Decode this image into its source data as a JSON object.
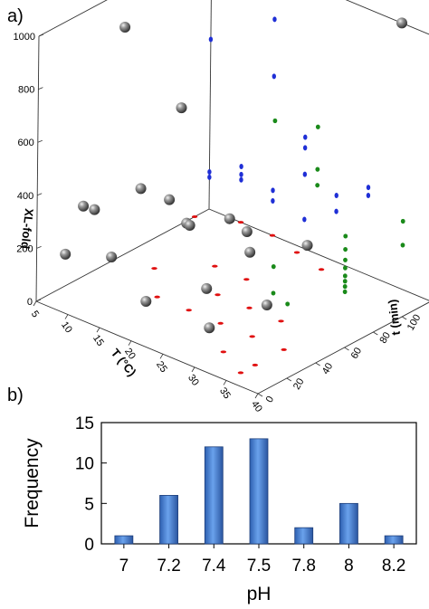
{
  "panels": {
    "a_label": "a)",
    "b_label": "b)"
  },
  "chart_data": [
    {
      "type": "scatter",
      "projection": "3d",
      "panel": "a)",
      "xlabel": "T (°C)",
      "ylabel": "t (min)",
      "zlabel": "XL-fold",
      "xlim": [
        5,
        40
      ],
      "ylim": [
        0,
        120
      ],
      "zlim": [
        0,
        1000
      ],
      "x_ticks": [
        "5",
        "10",
        "15",
        "20",
        "25",
        "30",
        "35",
        "40"
      ],
      "y_ticks": [
        "0",
        "20",
        "40",
        "60",
        "80",
        "100",
        "120"
      ],
      "z_ticks": [
        "0",
        "200",
        "400",
        "600",
        "800",
        "1000"
      ],
      "colors": {
        "points": "#5a5a5a",
        "proj_xz": "#1f2fd6",
        "proj_yz": "#1a8a1a",
        "proj_xy": "#e01010"
      },
      "points": [
        {
          "T": 5,
          "t": 60,
          "fold": 860
        },
        {
          "T": 5,
          "t": 100,
          "fold": 440
        },
        {
          "T": 5,
          "t": 20,
          "fold": 120
        },
        {
          "T": 5,
          "t": 40,
          "fold": 230
        },
        {
          "T": 10,
          "t": 10,
          "fold": 380
        },
        {
          "T": 10,
          "t": 30,
          "fold": 130
        },
        {
          "T": 10,
          "t": 50,
          "fold": 330
        },
        {
          "T": 10,
          "t": 70,
          "fold": 230
        },
        {
          "T": 15,
          "t": 60,
          "fold": 220
        },
        {
          "T": 15,
          "t": 90,
          "fold": 150
        },
        {
          "T": 20,
          "t": 10,
          "fold": 120
        },
        {
          "T": 20,
          "t": 40,
          "fold": 320
        },
        {
          "T": 20,
          "t": 80,
          "fold": 180
        },
        {
          "T": 25,
          "t": 30,
          "fold": 160
        },
        {
          "T": 25,
          "t": 60,
          "fold": 210
        },
        {
          "T": 25,
          "t": 100,
          "fold": 120
        },
        {
          "T": 30,
          "t": 50,
          "fold": 90
        },
        {
          "T": 30,
          "t": 10,
          "fold": 120
        },
        {
          "T": 35,
          "t": 120,
          "fold": 1000
        }
      ],
      "proj_xz": [
        {
          "T": 5,
          "fold": 990
        },
        {
          "T": 5,
          "fold": 640
        },
        {
          "T": 15,
          "fold": 815
        },
        {
          "T": 15,
          "fold": 600
        },
        {
          "T": 20,
          "fold": 420
        },
        {
          "T": 20,
          "fold": 380
        },
        {
          "T": 20,
          "fold": 280
        },
        {
          "T": 25,
          "fold": 250
        },
        {
          "T": 25,
          "fold": 190
        },
        {
          "T": 10,
          "fold": 210
        },
        {
          "T": 10,
          "fold": 180
        },
        {
          "T": 10,
          "fold": 160
        },
        {
          "T": 5,
          "fold": 140
        },
        {
          "T": 5,
          "fold": 120
        },
        {
          "T": 15,
          "fold": 170
        },
        {
          "T": 15,
          "fold": 130
        },
        {
          "T": 20,
          "fold": 110
        },
        {
          "T": 30,
          "fold": 330
        },
        {
          "T": 30,
          "fold": 300
        }
      ],
      "proj_yz": [
        {
          "t": 10,
          "fold": 1000
        },
        {
          "t": 40,
          "fold": 890
        },
        {
          "t": 40,
          "fold": 730
        },
        {
          "t": 40,
          "fold": 670
        },
        {
          "t": 10,
          "fold": 450
        },
        {
          "t": 10,
          "fold": 350
        },
        {
          "t": 20,
          "fold": 280
        },
        {
          "t": 60,
          "fold": 420
        },
        {
          "t": 60,
          "fold": 370
        },
        {
          "t": 60,
          "fold": 330
        },
        {
          "t": 60,
          "fold": 300
        },
        {
          "t": 60,
          "fold": 270
        },
        {
          "t": 60,
          "fold": 250
        },
        {
          "t": 60,
          "fold": 230
        },
        {
          "t": 60,
          "fold": 210
        },
        {
          "t": 100,
          "fold": 360
        },
        {
          "t": 100,
          "fold": 270
        },
        {
          "t": 120,
          "fold": 210
        },
        {
          "t": 120,
          "fold": 170
        }
      ],
      "proj_xy": [
        {
          "T": 10,
          "t": 120
        },
        {
          "T": 5,
          "t": 110
        },
        {
          "T": 15,
          "t": 120
        },
        {
          "T": 20,
          "t": 115
        },
        {
          "T": 25,
          "t": 110
        },
        {
          "T": 15,
          "t": 80
        },
        {
          "T": 20,
          "t": 80
        },
        {
          "T": 10,
          "t": 60
        },
        {
          "T": 20,
          "t": 60
        },
        {
          "T": 25,
          "t": 60
        },
        {
          "T": 30,
          "t": 60
        },
        {
          "T": 15,
          "t": 40
        },
        {
          "T": 20,
          "t": 40
        },
        {
          "T": 25,
          "t": 40
        },
        {
          "T": 30,
          "t": 40
        },
        {
          "T": 35,
          "t": 40
        },
        {
          "T": 30,
          "t": 20
        },
        {
          "T": 35,
          "t": 20
        },
        {
          "T": 35,
          "t": 10
        }
      ]
    },
    {
      "type": "bar",
      "panel": "b)",
      "categories": [
        "7",
        "7.2",
        "7.4",
        "7.5",
        "7.8",
        "8",
        "8.2"
      ],
      "values": [
        1,
        6,
        12,
        13,
        2,
        5,
        1
      ],
      "xlabel": "pH",
      "ylabel": "Frequency",
      "ylim": [
        0,
        15
      ],
      "yticks": [
        "0",
        "5",
        "10",
        "15"
      ],
      "bar_color": "#3c7bd4"
    }
  ]
}
